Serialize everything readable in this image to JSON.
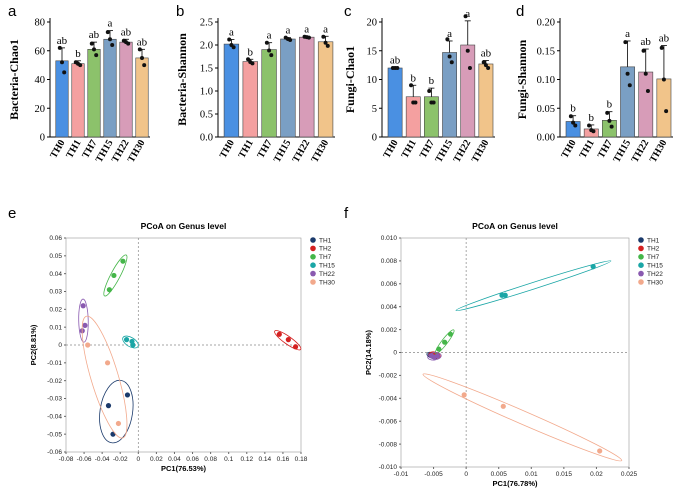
{
  "colors": {
    "TH0": "#4a90e2",
    "TH1": "#f4a0a0",
    "TH7": "#8cc26b",
    "TH15": "#7a9fc4",
    "TH22": "#d79cb8",
    "TH30": "#f1c48a",
    "pcoa_TH1": "#1b3a6b",
    "pcoa_TH2": "#d42020",
    "pcoa_TH7": "#45b649",
    "pcoa_TH15": "#1aa6a6",
    "pcoa_TH22": "#8a5ab0",
    "pcoa_TH30": "#f2a98c"
  },
  "chart_data": [
    {
      "panel": "a",
      "type": "bar",
      "categories": [
        "TH0",
        "TH1",
        "TH7",
        "TH15",
        "TH22",
        "TH30"
      ],
      "values": [
        53,
        51,
        61,
        68,
        66,
        55
      ],
      "errors": [
        9,
        2,
        5,
        6,
        2,
        6
      ],
      "points": [
        [
          62,
          52,
          45
        ],
        [
          52,
          51,
          50
        ],
        [
          65,
          61,
          57
        ],
        [
          73,
          68,
          64
        ],
        [
          67,
          66,
          65
        ],
        [
          61,
          55,
          50
        ]
      ],
      "significance": [
        "ab",
        "b",
        "ab",
        "a",
        "ab",
        "ab"
      ],
      "ylabel": "Bacteria-Chao1",
      "ylim": [
        0,
        80
      ],
      "yticks": [
        0,
        20,
        40,
        60,
        80
      ]
    },
    {
      "panel": "b",
      "type": "bar",
      "categories": [
        "TH0",
        "TH1",
        "TH7",
        "TH15",
        "TH22",
        "TH30"
      ],
      "values": [
        2.02,
        1.64,
        1.9,
        2.13,
        2.17,
        2.07
      ],
      "errors": [
        0.1,
        0.05,
        0.15,
        0.03,
        0.01,
        0.12
      ],
      "points": [
        [
          2.12,
          2.0,
          1.95
        ],
        [
          1.69,
          1.63,
          1.6
        ],
        [
          2.05,
          1.88,
          1.78
        ],
        [
          2.16,
          2.13,
          2.11
        ],
        [
          2.18,
          2.17,
          2.16
        ],
        [
          2.18,
          2.05,
          1.98
        ]
      ],
      "significance": [
        "a",
        "b",
        "a",
        "a",
        "a",
        "a"
      ],
      "ylabel": "Bacteria-Shannon",
      "ylim": [
        0.0,
        2.5
      ],
      "yticks": [
        0.0,
        0.5,
        1.0,
        1.5,
        2.0,
        2.5
      ]
    },
    {
      "panel": "c",
      "type": "bar",
      "categories": [
        "TH0",
        "TH1",
        "TH7",
        "TH15",
        "TH22",
        "TH30"
      ],
      "values": [
        12,
        7,
        7,
        14.7,
        16,
        12.7
      ],
      "errors": [
        0.1,
        2,
        1.5,
        2,
        4.2,
        0.6
      ],
      "points": [
        [
          12,
          12,
          12
        ],
        [
          9,
          6,
          6
        ],
        [
          8,
          6,
          6
        ],
        [
          17,
          14,
          13
        ],
        [
          21,
          15,
          12
        ],
        [
          13,
          12.5,
          12
        ]
      ],
      "significance": [
        "ab",
        "b",
        "b",
        "a",
        "a",
        "ab"
      ],
      "ylabel": "Fungi-Chao1",
      "ylim": [
        0,
        20
      ],
      "yticks": [
        0,
        5,
        10,
        15,
        20
      ]
    },
    {
      "panel": "d",
      "type": "bar",
      "categories": [
        "TH0",
        "TH1",
        "TH7",
        "TH15",
        "TH22",
        "TH30"
      ],
      "values": [
        0.027,
        0.014,
        0.029,
        0.122,
        0.113,
        0.101
      ],
      "errors": [
        0.01,
        0.007,
        0.015,
        0.045,
        0.04,
        0.058
      ],
      "points": [
        [
          0.036,
          0.025,
          0.02
        ],
        [
          0.02,
          0.012,
          0.01
        ],
        [
          0.042,
          0.028,
          0.018
        ],
        [
          0.165,
          0.11,
          0.09
        ],
        [
          0.15,
          0.11,
          0.08
        ],
        [
          0.155,
          0.1,
          0.045
        ]
      ],
      "significance": [
        "b",
        "b",
        "b",
        "a",
        "ab",
        "ab"
      ],
      "ylabel": "Fungi-Shannon",
      "ylim": [
        0.0,
        0.2
      ],
      "yticks": [
        0.0,
        0.05,
        0.1,
        0.15,
        0.2
      ]
    },
    {
      "panel": "e",
      "type": "scatter",
      "title": "PCoA on Genus level",
      "xlabel": "PC1(76.53%)",
      "ylabel": "PC2(8.81%)",
      "xlim": [
        -0.08,
        0.18
      ],
      "ylim": [
        -0.06,
        0.06
      ],
      "xticks": [
        -0.08,
        -0.06,
        -0.04,
        -0.02,
        0,
        0.02,
        0.04,
        0.06,
        0.08,
        0.1,
        0.12,
        0.14,
        0.16,
        0.18
      ],
      "yticks": [
        -0.06,
        -0.05,
        -0.04,
        -0.03,
        -0.02,
        -0.01,
        0,
        0.01,
        0.02,
        0.03,
        0.04,
        0.05,
        0.06
      ],
      "series": [
        {
          "name": "TH1",
          "points": [
            [
              -0.033,
              -0.034
            ],
            [
              -0.012,
              -0.028
            ],
            [
              -0.028,
              -0.05
            ]
          ]
        },
        {
          "name": "TH2",
          "points": [
            [
              0.156,
              0.006
            ],
            [
              0.166,
              0.003
            ],
            [
              0.174,
              -0.001
            ]
          ]
        },
        {
          "name": "TH7",
          "points": [
            [
              -0.032,
              0.031
            ],
            [
              -0.027,
              0.039
            ],
            [
              -0.017,
              0.047
            ]
          ]
        },
        {
          "name": "TH15",
          "points": [
            [
              -0.013,
              0.003
            ],
            [
              -0.007,
              0.002
            ],
            [
              -0.006,
              0.0
            ]
          ]
        },
        {
          "name": "TH22",
          "points": [
            [
              -0.061,
              0.022
            ],
            [
              -0.059,
              0.011
            ],
            [
              -0.062,
              0.008
            ]
          ]
        },
        {
          "name": "TH30",
          "points": [
            [
              -0.056,
              0.0
            ],
            [
              -0.034,
              -0.01
            ],
            [
              -0.022,
              -0.044
            ]
          ]
        }
      ]
    },
    {
      "panel": "f",
      "type": "scatter",
      "title": "PCoA on Genus level",
      "xlabel": "PC1(76.78%)",
      "ylabel": "PC2(14.18%)",
      "xlim": [
        -0.01,
        0.025
      ],
      "ylim": [
        -0.01,
        0.01
      ],
      "xticks": [
        -0.01,
        -0.005,
        0,
        0.005,
        0.01,
        0.015,
        0.02,
        0.025
      ],
      "yticks": [
        -0.01,
        -0.008,
        -0.006,
        -0.004,
        -0.002,
        0,
        0.002,
        0.004,
        0.006,
        0.008,
        0.01
      ],
      "series": [
        {
          "name": "TH1",
          "points": [
            [
              -0.0055,
              -0.0002
            ],
            [
              -0.0051,
              -0.0003
            ],
            [
              -0.0049,
              -0.0003
            ]
          ]
        },
        {
          "name": "TH2",
          "points": [
            [
              -0.0052,
              -0.0002
            ],
            [
              -0.0048,
              -0.0002
            ],
            [
              -0.0046,
              -0.0003
            ]
          ]
        },
        {
          "name": "TH7",
          "points": [
            [
              -0.0042,
              0.0003
            ],
            [
              -0.0033,
              0.0009
            ],
            [
              -0.0024,
              0.0016
            ]
          ]
        },
        {
          "name": "TH15",
          "points": [
            [
              0.0055,
              0.005
            ],
            [
              0.006,
              0.005
            ],
            [
              0.0195,
              0.0075
            ]
          ]
        },
        {
          "name": "TH22",
          "points": [
            [
              -0.0053,
              -0.0003
            ],
            [
              -0.0049,
              -0.0004
            ],
            [
              -0.0044,
              -0.0003
            ]
          ]
        },
        {
          "name": "TH30",
          "points": [
            [
              -0.0003,
              -0.0037
            ],
            [
              0.0057,
              -0.0047
            ],
            [
              0.0205,
              -0.0086
            ]
          ]
        }
      ]
    }
  ],
  "panel_letters": [
    "a",
    "b",
    "c",
    "d",
    "e",
    "f"
  ],
  "legend": [
    "TH1",
    "TH2",
    "TH7",
    "TH15",
    "TH22",
    "TH30"
  ]
}
